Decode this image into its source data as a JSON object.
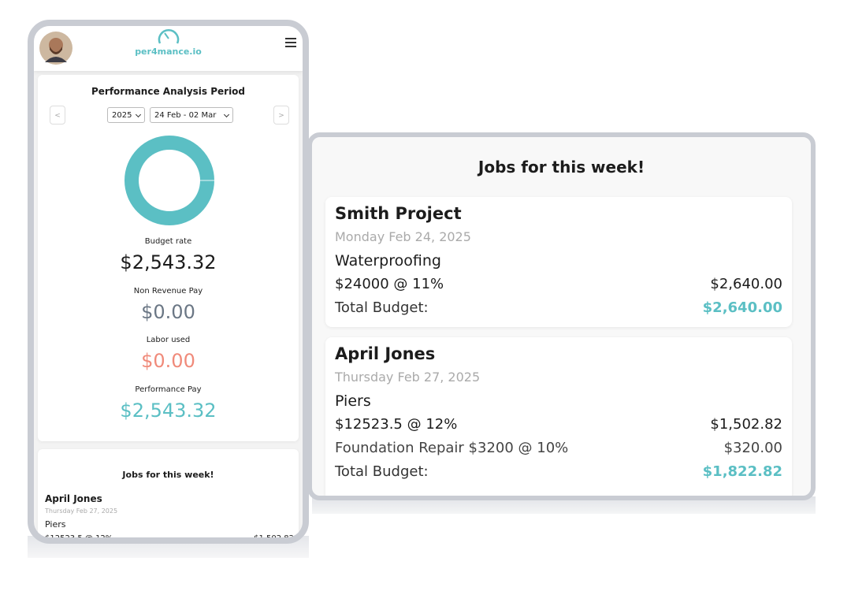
{
  "header": {
    "logo": "per4mance.io"
  },
  "period": {
    "title": "Performance Analysis Period",
    "prev": "<",
    "next": ">",
    "year": "2025",
    "week": "24 Feb - 02 Mar"
  },
  "metrics": [
    {
      "label": "Budget rate",
      "value": "$2,543.32"
    },
    {
      "label": "Non Revenue Pay",
      "value": "$0.00"
    },
    {
      "label": "Labor used",
      "value": "$0.00"
    },
    {
      "label": "Performance Pay",
      "value": "$2,543.32"
    }
  ],
  "jobs": {
    "title": "Jobs for this week!",
    "items": [
      {
        "name": "Smith Project",
        "date": "Monday Feb 24, 2025",
        "trade": "Waterproofing",
        "lines": [
          {
            "text": "$24000 @ 11%",
            "amount": "$2,640.00"
          }
        ],
        "total_label": "Total Budget:",
        "total": "$2,640.00"
      },
      {
        "name": "April Jones",
        "date": "Thursday Feb 27, 2025",
        "trade": "Piers",
        "lines": [
          {
            "text": "$12523.5 @ 12%",
            "amount": "$1,502.82"
          },
          {
            "text": "Foundation Repair $3200 @ 10%",
            "amount": "$320.00"
          }
        ],
        "total_label": "Total Budget:",
        "total": "$1,822.82"
      }
    ]
  }
}
